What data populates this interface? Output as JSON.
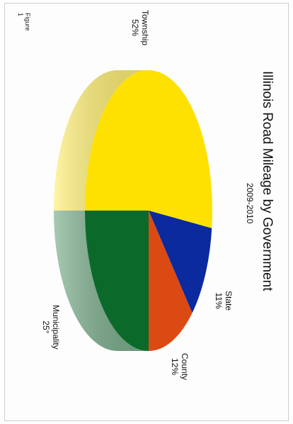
{
  "chart_data": {
    "type": "pie",
    "title": "Illinois Road Mileage by Government",
    "subtitle": "2009-2010",
    "slices": [
      {
        "name": "Township",
        "value": 52,
        "pct_label": "52%",
        "color": "#ffe100"
      },
      {
        "name": "State",
        "value": 11,
        "pct_label": "11%",
        "color": "#0a2a9e"
      },
      {
        "name": "County",
        "value": 12,
        "pct_label": "12%",
        "color": "#dc4a14"
      },
      {
        "name": "Municipality",
        "value": 25,
        "pct_label": "25°",
        "color": "#0b6a2a"
      }
    ],
    "figure_label": "Figure",
    "figure_number": "1",
    "orientation": "rotated 90° clockwise"
  }
}
